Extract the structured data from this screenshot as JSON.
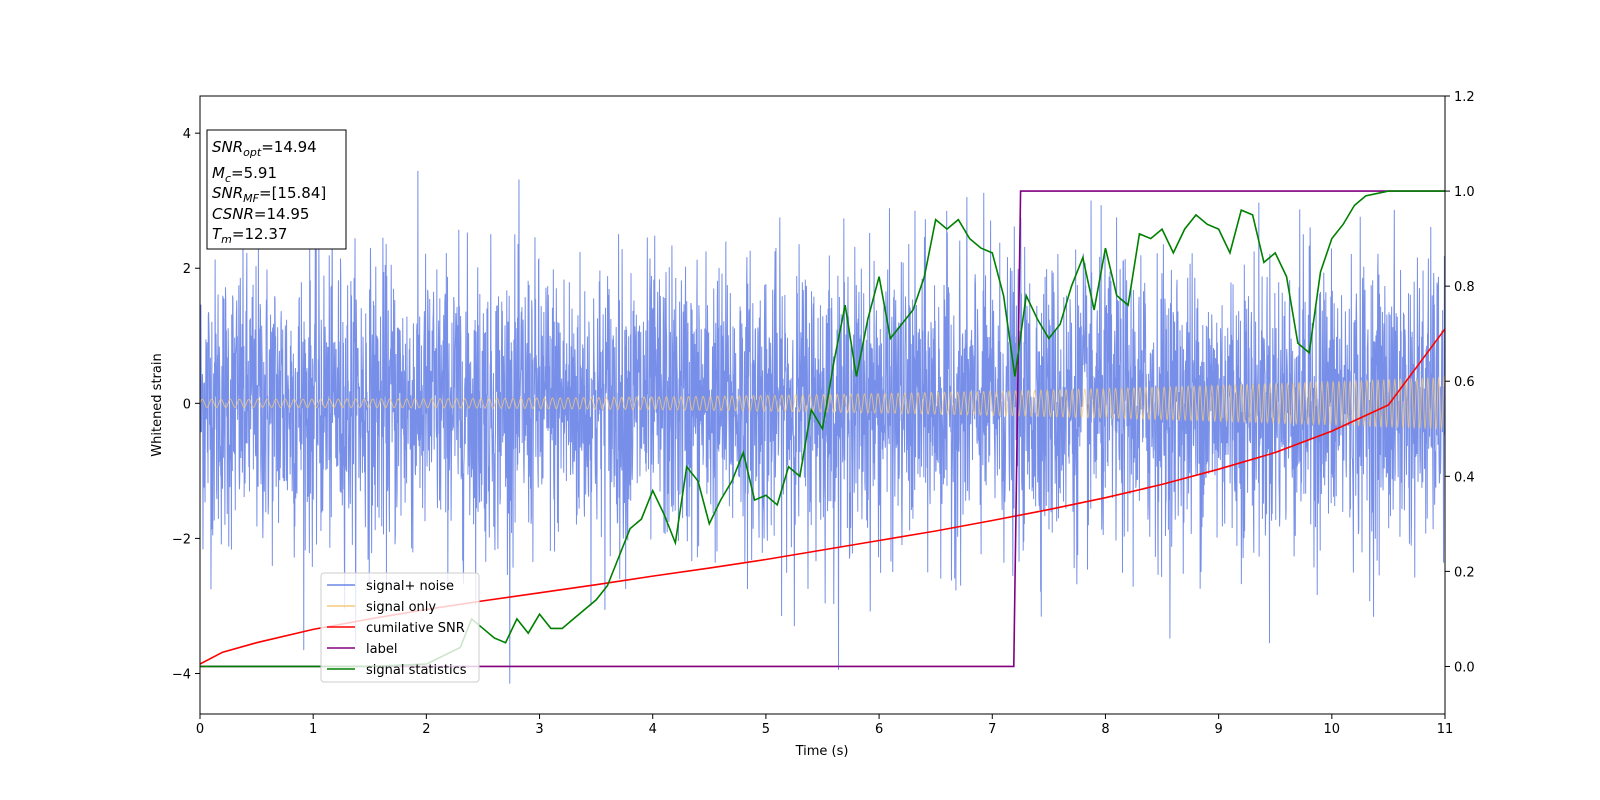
{
  "chart_data": {
    "type": "line",
    "x_axis": {
      "label": "Time (s)",
      "lim": [
        0,
        11
      ],
      "ticks": [
        0,
        1,
        2,
        3,
        4,
        5,
        6,
        7,
        8,
        9,
        10,
        11
      ],
      "tick_labels": [
        "0",
        "1",
        "2",
        "3",
        "4",
        "5",
        "6",
        "7",
        "8",
        "9",
        "10",
        "11"
      ]
    },
    "y_left": {
      "label": "Whitened strain",
      "lim": [
        -4.6,
        4.55
      ],
      "ticks": [
        -4,
        -2,
        0,
        2,
        4
      ],
      "tick_labels": [
        "−4",
        "−2",
        "0",
        "2",
        "4"
      ]
    },
    "y_right": {
      "lim": [
        -0.1,
        1.2
      ],
      "ticks": [
        0.0,
        0.2,
        0.4,
        0.6,
        0.8,
        1.0,
        1.2
      ],
      "tick_labels": [
        "0.0",
        "0.2",
        "0.4",
        "0.6",
        "0.8",
        "1.0",
        "1.2"
      ]
    },
    "grid": false,
    "legend_position": "lower-left",
    "legend": [
      {
        "label": "signal+ noise",
        "color": "#6b86e6"
      },
      {
        "label": "signal only",
        "color": "#f5c97b"
      },
      {
        "label": "cumilative SNR",
        "color": "#ff0000"
      },
      {
        "label": "label",
        "color": "#800080"
      },
      {
        "label": "signal statistics",
        "color": "#008000"
      }
    ],
    "info_box": [
      {
        "main": "SNR",
        "sub": "opt",
        "value": "=14.94"
      },
      {
        "main": "M",
        "sub": "c",
        "value": "=5.91"
      },
      {
        "main": "SNR",
        "sub": "MF",
        "value": "=[15.84]"
      },
      {
        "main": "CSNR",
        "sub": "",
        "value": "=14.95"
      },
      {
        "main": "T",
        "sub": "m",
        "value": "=12.37"
      }
    ],
    "series": [
      {
        "name": "signal+ noise",
        "axis": "left",
        "color": "#6b86e6",
        "kind": "noise",
        "approx_amplitude_std": 1.0,
        "x_range": [
          0,
          11
        ]
      },
      {
        "name": "signal only",
        "axis": "left",
        "color": "#f5c97b",
        "kind": "chirp",
        "amplitude_start": 0.06,
        "amplitude_end": 0.38,
        "x_range": [
          0,
          11
        ]
      },
      {
        "name": "cumilative SNR",
        "axis": "right",
        "color": "#ff0000",
        "x": [
          0,
          0.2,
          0.5,
          1,
          1.5,
          2,
          2.5,
          3,
          3.5,
          4,
          4.5,
          5,
          5.5,
          6,
          6.5,
          7,
          7.5,
          8,
          8.5,
          9,
          9.5,
          10,
          10.5,
          11
        ],
        "y": [
          0.005,
          0.03,
          0.05,
          0.078,
          0.1,
          0.12,
          0.138,
          0.155,
          0.172,
          0.19,
          0.207,
          0.225,
          0.245,
          0.265,
          0.285,
          0.307,
          0.33,
          0.355,
          0.383,
          0.415,
          0.45,
          0.495,
          0.55,
          0.71
        ]
      },
      {
        "name": "label",
        "axis": "right",
        "color": "#800080",
        "x": [
          0,
          7.19,
          7.25,
          11
        ],
        "y": [
          0,
          0,
          1,
          1
        ]
      },
      {
        "name": "signal statistics",
        "axis": "right",
        "color": "#008000",
        "x": [
          0,
          0.5,
          1,
          1.5,
          2,
          2.3,
          2.4,
          2.5,
          2.6,
          2.7,
          2.8,
          2.9,
          3.0,
          3.1,
          3.2,
          3.3,
          3.4,
          3.5,
          3.6,
          3.7,
          3.8,
          3.9,
          4.0,
          4.1,
          4.2,
          4.3,
          4.4,
          4.5,
          4.6,
          4.7,
          4.8,
          4.9,
          5.0,
          5.1,
          5.2,
          5.3,
          5.4,
          5.5,
          5.6,
          5.7,
          5.8,
          5.9,
          6.0,
          6.1,
          6.2,
          6.3,
          6.4,
          6.5,
          6.6,
          6.7,
          6.8,
          6.9,
          7.0,
          7.1,
          7.2,
          7.3,
          7.4,
          7.5,
          7.6,
          7.7,
          7.8,
          7.9,
          8.0,
          8.1,
          8.2,
          8.3,
          8.4,
          8.5,
          8.6,
          8.7,
          8.8,
          8.9,
          9.0,
          9.1,
          9.2,
          9.3,
          9.4,
          9.5,
          9.6,
          9.7,
          9.8,
          9.9,
          10.0,
          10.1,
          10.2,
          10.3,
          10.5,
          11
        ],
        "y": [
          0.0,
          0.0,
          0.0,
          0.0,
          0.005,
          0.04,
          0.1,
          0.08,
          0.06,
          0.05,
          0.1,
          0.07,
          0.11,
          0.08,
          0.08,
          0.1,
          0.12,
          0.14,
          0.17,
          0.23,
          0.29,
          0.31,
          0.37,
          0.32,
          0.26,
          0.42,
          0.39,
          0.3,
          0.35,
          0.39,
          0.45,
          0.35,
          0.36,
          0.34,
          0.42,
          0.4,
          0.54,
          0.5,
          0.64,
          0.76,
          0.61,
          0.73,
          0.82,
          0.69,
          0.72,
          0.75,
          0.82,
          0.94,
          0.92,
          0.94,
          0.9,
          0.88,
          0.87,
          0.78,
          0.61,
          0.78,
          0.73,
          0.69,
          0.72,
          0.8,
          0.86,
          0.75,
          0.88,
          0.78,
          0.76,
          0.91,
          0.9,
          0.92,
          0.87,
          0.92,
          0.95,
          0.93,
          0.92,
          0.87,
          0.96,
          0.95,
          0.85,
          0.87,
          0.82,
          0.68,
          0.66,
          0.83,
          0.9,
          0.93,
          0.97,
          0.99,
          1.0,
          1.0
        ]
      }
    ]
  }
}
